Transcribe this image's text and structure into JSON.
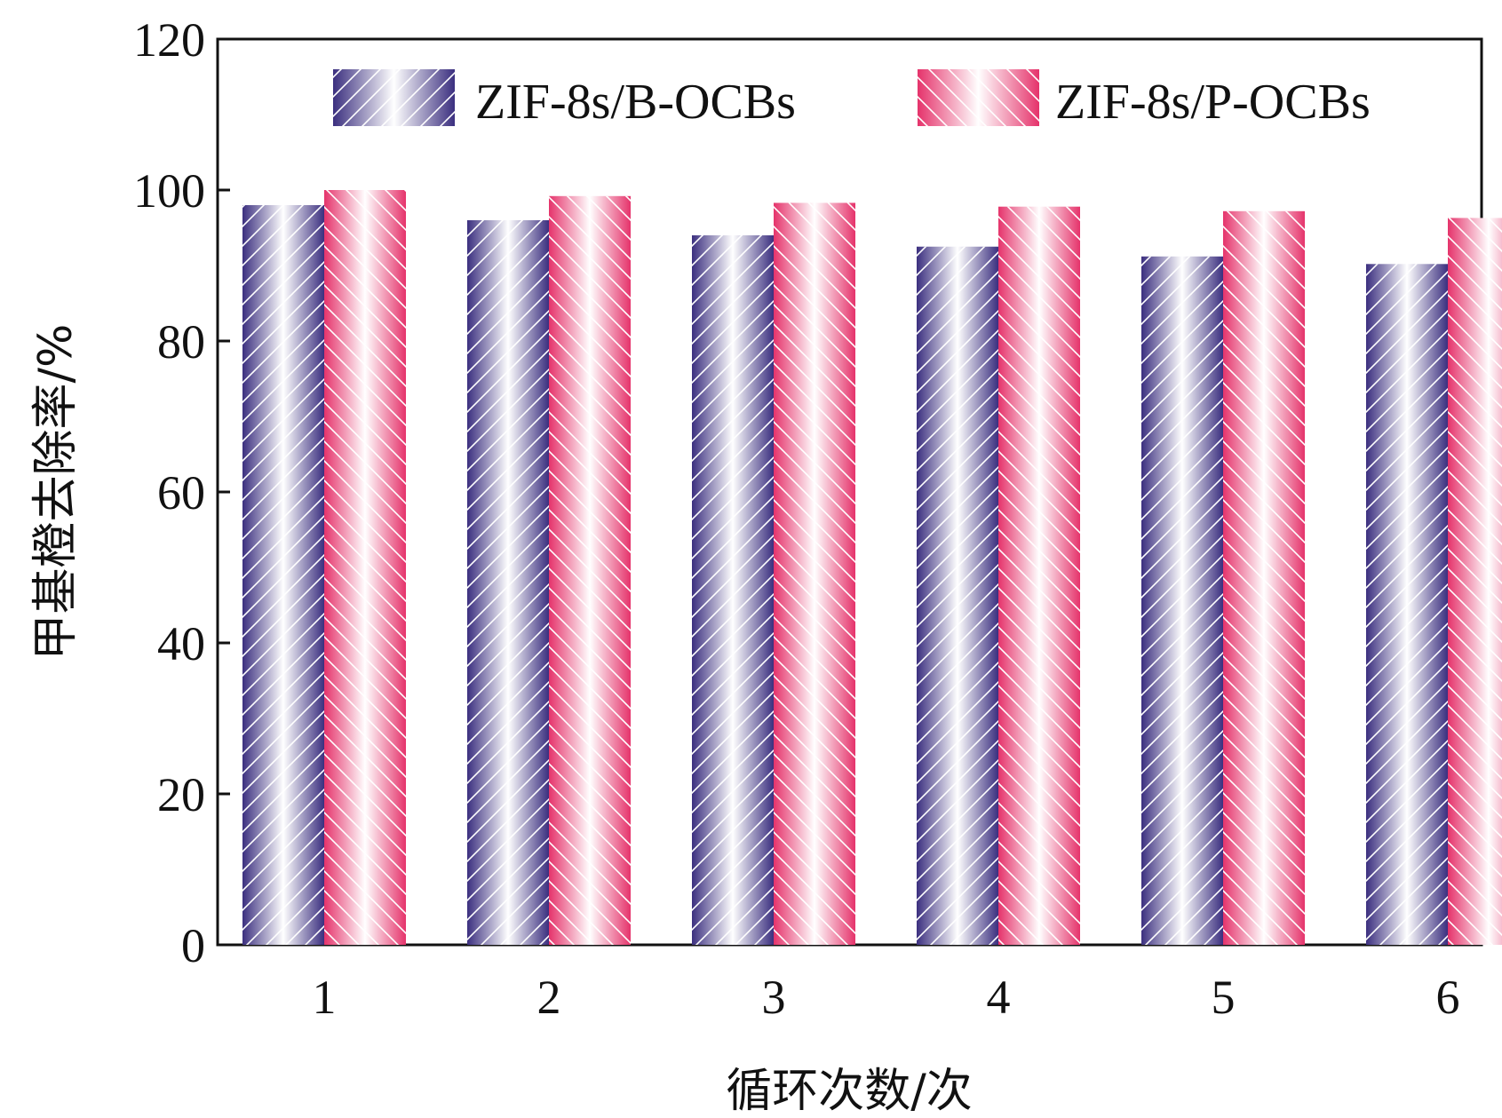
{
  "chart_data": {
    "type": "bar",
    "categories": [
      "1",
      "2",
      "3",
      "4",
      "5",
      "6"
    ],
    "series": [
      {
        "name": "ZIF-8s/B-OCBs",
        "values": [
          98,
          96,
          94,
          92.5,
          91.2,
          90.2
        ],
        "color": "#3b2f7f"
      },
      {
        "name": "ZIF-8s/P-OCBs",
        "values": [
          100,
          99.2,
          98.3,
          97.8,
          97.2,
          96.3
        ],
        "color": "#e5336b"
      }
    ],
    "xlabel": "循环次数/次",
    "ylabel": "甲基橙去除率/%",
    "ylim": [
      0,
      120
    ],
    "yticks": [
      "0",
      "20",
      "40",
      "60",
      "80",
      "100",
      "120"
    ],
    "legend_position": "top",
    "grid": false
  }
}
